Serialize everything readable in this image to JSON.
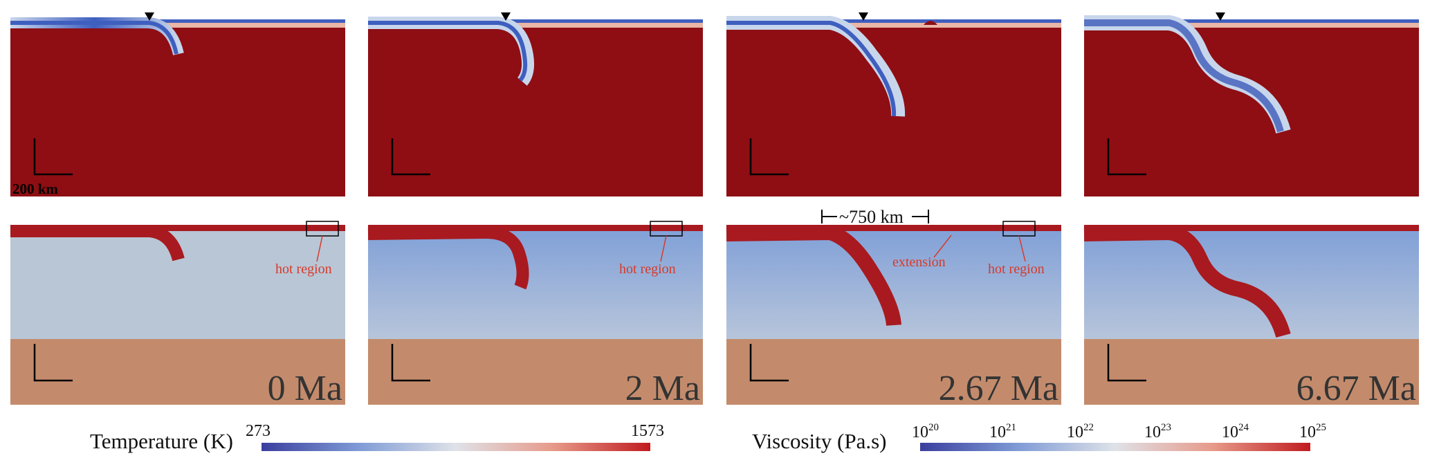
{
  "colors": {
    "hot_mantle_red": "#8e0e14",
    "lithosphere_blue": "#3b5bb8",
    "viscosity_mantle": "#b9c6d6",
    "lower_mantle": "#c38b6c",
    "annotation_red": "#d63a2a"
  },
  "panels": [
    {
      "time": "0 Ma",
      "hot_region": "hot region"
    },
    {
      "time": "2 Ma",
      "hot_region": "hot region"
    },
    {
      "time": "2.67 Ma",
      "hot_region": "hot region",
      "extension": "extension",
      "width_label": "~750 km"
    },
    {
      "time": "6.67 Ma"
    }
  ],
  "scale_bar": {
    "label": "200 km"
  },
  "legends": {
    "temperature": {
      "title": "Temperature (K)",
      "min": "273",
      "max": "1573"
    },
    "viscosity": {
      "title": "Viscosity (Pa.s)",
      "ticks": [
        {
          "base": "10",
          "exp": "20"
        },
        {
          "base": "10",
          "exp": "21"
        },
        {
          "base": "10",
          "exp": "22"
        },
        {
          "base": "10",
          "exp": "23"
        },
        {
          "base": "10",
          "exp": "24"
        },
        {
          "base": "10",
          "exp": "25"
        }
      ]
    }
  }
}
